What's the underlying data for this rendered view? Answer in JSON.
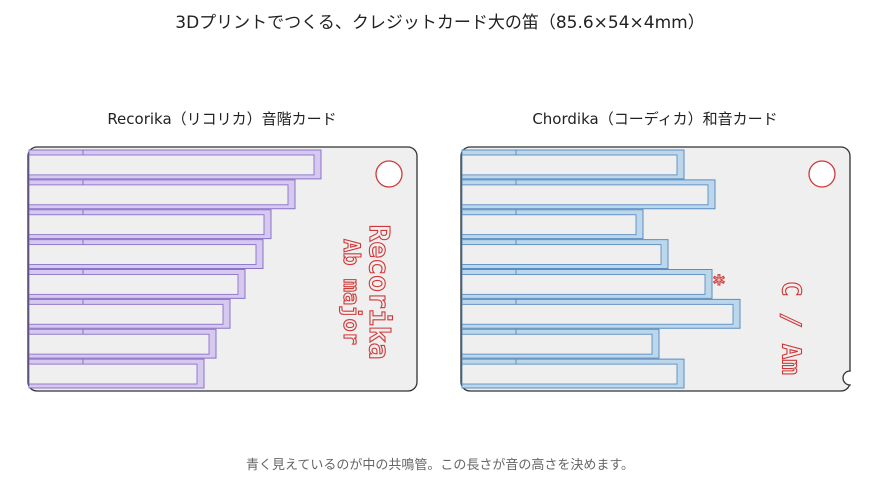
{
  "title": "3Dプリントでつくる、クレジットカード大の笛（85.6×54×4mm）",
  "footnote": "青く見えているのが中の共鳴管。この長さが音の高さを決めます。",
  "colors": {
    "card_fill": "#efefef",
    "card_stroke": "#333333",
    "label_red": "#d03838",
    "purple_fill": "#d6c8ef",
    "purple_stroke": "#8a72c8",
    "blue_fill": "#bcd6ec",
    "blue_stroke": "#5b8ec0"
  },
  "cards": [
    {
      "caption": "Recorika（リコリカ）音階カード",
      "text_line1": "Recorika",
      "text_line2": "Ab major",
      "tube_lengths": [
        1.0,
        0.91,
        0.83,
        0.8,
        0.74,
        0.69,
        0.64,
        0.6
      ],
      "marker": "",
      "side_notch": false
    },
    {
      "caption": "Chordika（コーディカ）和音カード",
      "text_line1": "C / Am",
      "text_line2": "",
      "tube_lengths": [
        0.8,
        0.91,
        0.65,
        0.74,
        0.9,
        1.0,
        0.71,
        0.8
      ],
      "marker": "*",
      "side_notch": true
    }
  ]
}
